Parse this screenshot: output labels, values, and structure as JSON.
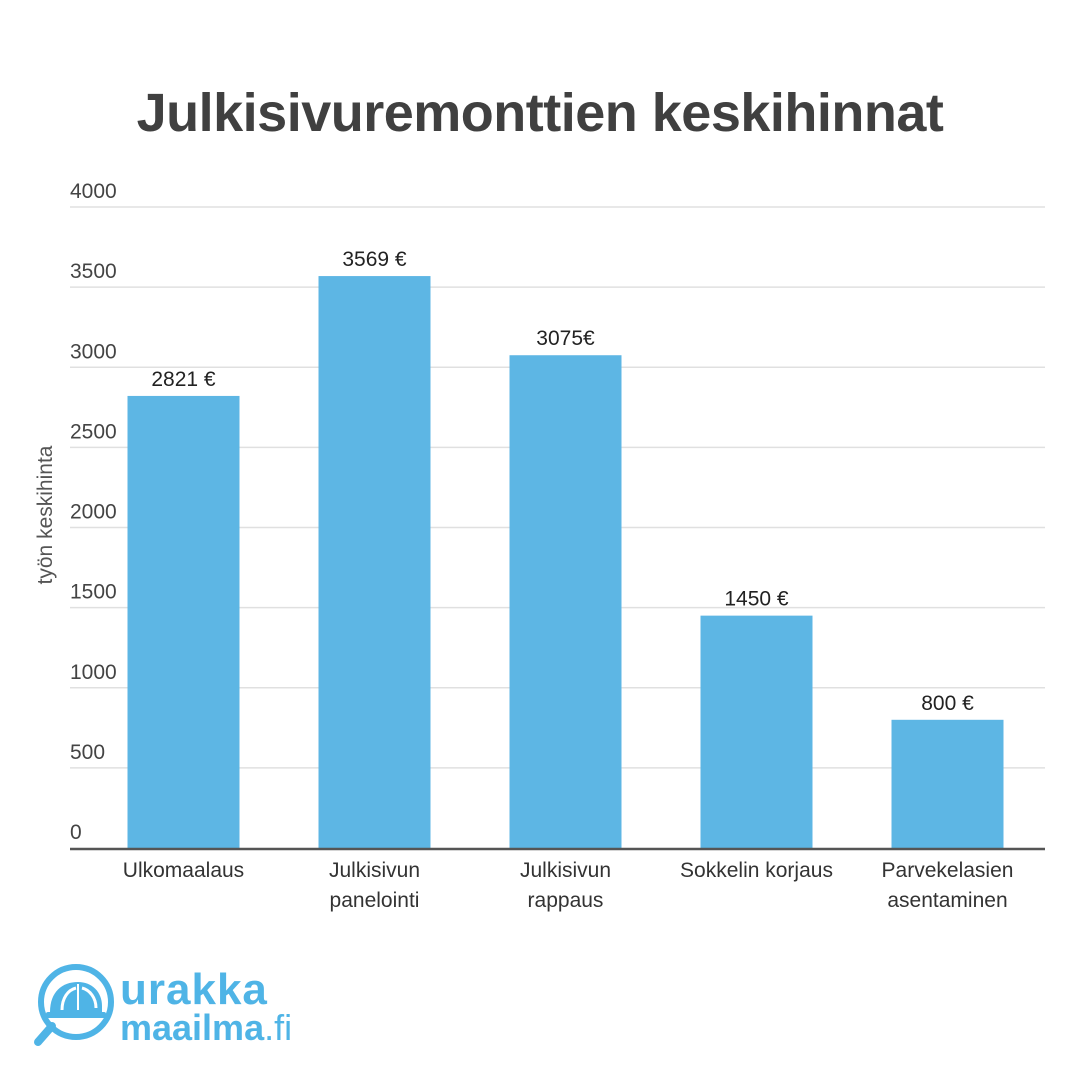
{
  "chart_data": {
    "type": "bar",
    "title": "Julkisivuremonttien keskihinnat",
    "ylabel": "työn keskihinta",
    "xlabel": "",
    "ylim": [
      0,
      4000
    ],
    "yticks": [
      0,
      500,
      1000,
      1500,
      2000,
      2500,
      3000,
      3500,
      4000
    ],
    "grid": true,
    "categories": [
      [
        "Ulkomaalaus"
      ],
      [
        "Julkisivun",
        "panelointi"
      ],
      [
        "Julkisivun",
        "rappaus"
      ],
      [
        "Sokkelin korjaus"
      ],
      [
        "Parvekelasien",
        "asentaminen"
      ]
    ],
    "values": [
      2821,
      3569,
      3075,
      1450,
      800
    ],
    "data_labels": [
      "2821 €",
      "3569 €",
      "3075€",
      "1450 €",
      "800 €"
    ],
    "colors": {
      "bar": "#5db6e4",
      "grid": "#e0e0e0",
      "axis": "#555555",
      "text": "#333333",
      "tick": "#444444",
      "title": "#404040"
    }
  },
  "logo": {
    "icon": "hard-hat-magnifier-icon",
    "line1": "urakka",
    "line2": "maailma",
    "tld": ".fi",
    "color": "#4fb4e6"
  }
}
